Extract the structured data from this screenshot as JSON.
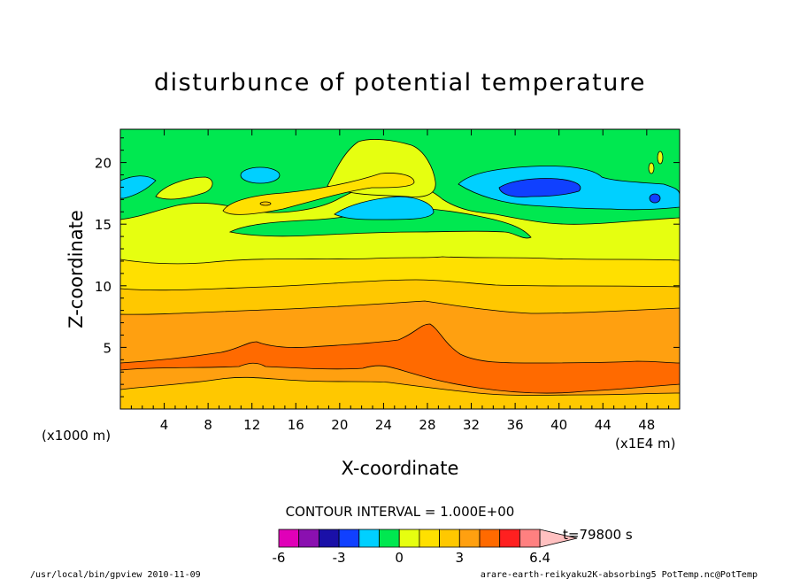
{
  "chart_data": {
    "type": "heatmap",
    "title": "disturbunce of potential temperature",
    "xlabel": "X-coordinate",
    "ylabel": "Z-coordinate",
    "x_unit": "(x1E4 m)",
    "y_unit": "(x1000 m)",
    "xlim": [
      0,
      51
    ],
    "ylim": [
      0,
      22.7
    ],
    "x_ticks": [
      4,
      8,
      12,
      16,
      20,
      24,
      28,
      32,
      36,
      40,
      44,
      48
    ],
    "x_tick_labels": [
      "4",
      "8",
      "12",
      "16",
      "20",
      "24",
      "28",
      "32",
      "36",
      "40",
      "44",
      "48"
    ],
    "y_ticks": [
      5,
      10,
      15,
      20
    ],
    "y_tick_labels": [
      "5",
      "10",
      "15",
      "20"
    ],
    "contour_interval_text": "CONTOUR INTERVAL = 1.000E+00",
    "time_label": "t=79800 s",
    "colorbar": {
      "levels": [
        -6,
        -5,
        -4,
        -3,
        -2,
        -1,
        0,
        1,
        2,
        3,
        4,
        5,
        6,
        6.4
      ],
      "tick_labels": [
        "-6",
        "-3",
        "0",
        "3",
        "6.4"
      ],
      "colors": [
        "#e000b8",
        "#8a10b0",
        "#1a10a8",
        "#1040ff",
        "#00d0ff",
        "#00e850",
        "#e6ff10",
        "#ffe000",
        "#ffc800",
        "#ffa010",
        "#ff6a00",
        "#ff2020",
        "#ff8080",
        "#ffc0c0"
      ]
    },
    "bands": [
      {
        "z": [
          0,
          1.8
        ],
        "value": 1.5
      },
      {
        "z": [
          1.8,
          4
        ],
        "value": 2.5
      },
      {
        "z": [
          4,
          7.5
        ],
        "value": 3.5
      },
      {
        "z": [
          7.5,
          9.8
        ],
        "value": 2.5
      },
      {
        "z": [
          9.8,
          12
        ],
        "value": 1.5
      },
      {
        "z": [
          12,
          15
        ],
        "value": 0.5
      },
      {
        "z": [
          15,
          22.7
        ],
        "value": -0.5
      }
    ],
    "features": [
      {
        "kind": "warm",
        "x": 13,
        "z": 16.8,
        "value": 1.5
      },
      {
        "kind": "warm",
        "x": 24,
        "z": 18,
        "value": 0.5
      },
      {
        "kind": "cold",
        "x": 38,
        "z": 17.8,
        "value": -2.5
      },
      {
        "kind": "cold",
        "x": 14,
        "z": 19,
        "value": -1.5
      },
      {
        "kind": "cold",
        "x": 22,
        "z": 16.3,
        "value": -1.5
      }
    ]
  },
  "footer": {
    "left": "/usr/local/bin/gpview  2010-11-09",
    "right": "arare-earth-reikyaku2K-absorbing5_PotTemp.nc@PotTemp"
  }
}
